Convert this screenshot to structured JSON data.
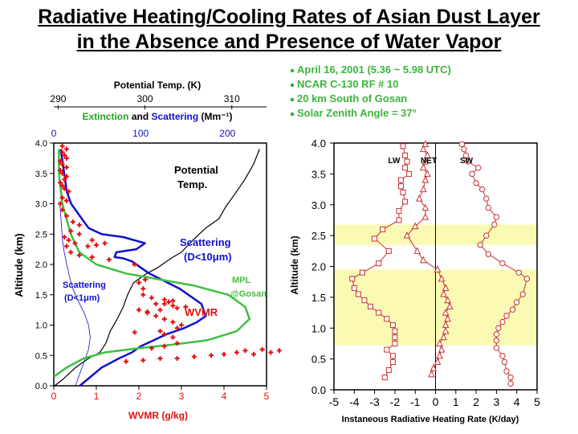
{
  "title": {
    "line1": "Radiative Heating/Cooling Rates of Asian Dust Layer",
    "line2": "in the Absence and Presence of Water Vapor"
  },
  "info": [
    "April 16, 2001 (5.36 ~ 5.98 UTC)",
    "NCAR C-130 RF # 10",
    "20 km South of Gosan",
    "Solar Zenith Angle = 37°"
  ],
  "colors": {
    "title": "#000000",
    "info": "#3cb43c",
    "scattering": "#1010d0",
    "wvmr": "#e01010",
    "mpl": "#40c040",
    "theta": "#000000",
    "flux": "#c83030",
    "band": "#fafab4",
    "axis": "#000000"
  },
  "chart_data": [
    {
      "type": "line",
      "ylabel": "Altitude (km)",
      "ylim": [
        0,
        4
      ],
      "yticks": [
        "0.0",
        "0.5",
        "1.0",
        "1.5",
        "2.0",
        "2.5",
        "3.0",
        "3.5",
        "4.0"
      ],
      "x_bottom": {
        "label": "WVMR (g/kg)",
        "lim": [
          0,
          5
        ],
        "ticks": [
          "0",
          "1",
          "2",
          "3",
          "4",
          "5"
        ]
      },
      "x_top1": {
        "label": "Potential Temp. (K)",
        "lim": [
          289.5,
          314
        ],
        "ticks": [
          "290",
          "300",
          "310"
        ]
      },
      "x_top2": {
        "label_parts": [
          "Extinction",
          "and",
          "Scattering",
          "(Mm⁻¹)"
        ],
        "lim": [
          0,
          245
        ],
        "ticks": [
          "0",
          "100",
          "200"
        ]
      },
      "annotations": {
        "theta_line1": "Potential",
        "theta_line2": "Temp.",
        "scat10_line1": "Scattering",
        "scat10_line2": "(D<10μm)",
        "scat1_line1": "Scattering",
        "scat1_line2": "(D<1μm)",
        "mpl_line1": "MPL",
        "mpl_line2": "@Gosan",
        "wvmr": "WVMR"
      },
      "series": [
        {
          "name": "Potential Temp.",
          "axis": "theta",
          "x": [
            289.6,
            290.5,
            292.0,
            293.5,
            294.8,
            295.5,
            296.0,
            296.8,
            297.5,
            298.0,
            298.7,
            300.2,
            301.5,
            303.0,
            304.2,
            305.5,
            307.0,
            308.5,
            309.3,
            310.3,
            311.5,
            312.5,
            313.2
          ],
          "y": [
            0.0,
            0.1,
            0.3,
            0.45,
            0.55,
            0.7,
            0.9,
            1.1,
            1.3,
            1.5,
            1.7,
            1.85,
            1.95,
            2.1,
            2.2,
            2.4,
            2.6,
            2.75,
            2.95,
            3.15,
            3.4,
            3.65,
            3.9
          ]
        },
        {
          "name": "Scattering (D<10μm)",
          "axis": "scattering",
          "x": [
            30,
            55,
            75,
            90,
            100,
            115,
            130,
            150,
            165,
            175,
            170,
            145,
            110,
            90,
            80,
            70,
            72,
            95,
            105,
            80,
            55,
            40,
            30,
            20,
            15,
            12,
            10,
            8
          ],
          "y": [
            0.0,
            0.3,
            0.45,
            0.55,
            0.65,
            0.75,
            0.85,
            0.95,
            1.05,
            1.15,
            1.35,
            1.6,
            1.85,
            2.05,
            2.1,
            2.12,
            2.2,
            2.25,
            2.35,
            2.45,
            2.5,
            2.6,
            2.8,
            3.0,
            3.2,
            3.5,
            3.7,
            3.9
          ]
        },
        {
          "name": "Scattering (D<1μm)",
          "axis": "scattering",
          "x": [
            25,
            30,
            35,
            40,
            42,
            40,
            35,
            28,
            22,
            18,
            15,
            12,
            10,
            9,
            8,
            7
          ],
          "y": [
            0.0,
            0.2,
            0.4,
            0.6,
            0.8,
            1.0,
            1.2,
            1.4,
            1.6,
            1.8,
            2.0,
            2.2,
            2.4,
            2.6,
            2.8,
            3.0
          ]
        },
        {
          "name": "MPL",
          "axis": "wvmr",
          "x": [
            0.0,
            0.3,
            0.7,
            1.2,
            2.0,
            2.8,
            3.6,
            4.3,
            4.6,
            4.5,
            4.1,
            3.3,
            2.5,
            1.7,
            1.0,
            0.6,
            0.4,
            0.2,
            0.12,
            0.12
          ],
          "y": [
            0.15,
            0.3,
            0.45,
            0.55,
            0.62,
            0.68,
            0.75,
            0.9,
            1.1,
            1.3,
            1.5,
            1.65,
            1.75,
            1.85,
            2.0,
            2.2,
            2.5,
            3.0,
            3.5,
            3.9
          ]
        },
        {
          "name": "WVMR",
          "axis": "wvmr",
          "x": [
            1.7,
            2.1,
            2.5,
            2.9,
            3.3,
            3.7,
            4.0,
            4.3,
            4.5,
            4.7,
            4.9,
            5.1,
            5.3,
            2.3,
            2.6,
            2.9,
            2.8,
            2.6,
            2.5,
            2.9,
            3.0,
            2.8,
            2.6,
            2.4,
            2.2,
            1.9,
            2.2,
            2.0,
            2.5,
            2.9,
            3.1,
            2.8,
            2.6,
            2.4,
            2.7,
            2.8,
            2.6,
            2.3,
            2.1,
            2.1,
            2.0,
            2.15,
            1.9,
            1.3,
            0.9,
            0.6,
            0.4,
            0.3,
            0.35,
            0.25,
            0.5,
            0.8,
            1.0,
            1.2,
            0.9,
            0.6,
            0.4,
            0.6,
            0.45,
            0.3,
            0.2,
            0.15,
            0.3,
            0.2,
            0.35,
            0.25,
            0.2,
            0.15,
            0.25,
            0.3,
            0.2,
            0.15,
            0.3,
            0.2,
            0.15,
            0.3,
            0.25,
            0.2,
            0.3,
            0.2
          ],
          "y": [
            0.4,
            0.42,
            0.45,
            0.45,
            0.48,
            0.5,
            0.52,
            0.55,
            0.58,
            0.52,
            0.6,
            0.55,
            0.58,
            0.62,
            0.65,
            0.7,
            0.8,
            0.85,
            0.9,
            0.95,
            1.0,
            1.05,
            1.1,
            1.15,
            1.2,
            0.88,
            1.22,
            1.25,
            1.25,
            1.28,
            1.3,
            1.32,
            1.35,
            1.35,
            1.38,
            1.4,
            1.42,
            1.45,
            1.5,
            1.6,
            1.7,
            1.75,
            2.0,
            2.08,
            2.12,
            2.15,
            2.2,
            2.3,
            2.4,
            2.45,
            2.35,
            2.3,
            2.32,
            2.35,
            2.4,
            2.5,
            2.55,
            2.65,
            2.7,
            2.8,
            2.9,
            3.0,
            3.05,
            3.1,
            3.2,
            3.25,
            3.3,
            3.35,
            3.4,
            3.45,
            3.5,
            3.55,
            3.6,
            3.65,
            3.7,
            3.75,
            3.8,
            3.85,
            3.9,
            3.95
          ]
        }
      ]
    },
    {
      "type": "line",
      "xlabel": "Instaneous Radiative Heating Rate (K/day)",
      "ylabel": "Altitude (km)",
      "xlim": [
        -5,
        5
      ],
      "ylim": [
        0,
        4
      ],
      "xticks": [
        "-5",
        "-4",
        "-3",
        "-2",
        "-1",
        "0",
        "1",
        "2",
        "3",
        "4",
        "5"
      ],
      "yticks": [
        "0.0",
        "0.5",
        "1.0",
        "1.5",
        "2.0",
        "2.5",
        "3.0",
        "3.5",
        "4.0"
      ],
      "shaded_bands": [
        [
          0.72,
          1.95
        ],
        [
          2.35,
          2.68
        ]
      ],
      "series": [
        {
          "name": "LW",
          "marker": "square",
          "x": [
            -2.5,
            -2.3,
            -2.1,
            -2.1,
            -2.4,
            -2.0,
            -2.0,
            -2.0,
            -2.1,
            -2.4,
            -2.8,
            -3.2,
            -3.5,
            -3.8,
            -4.0,
            -4.1,
            -3.6,
            -2.8,
            -2.3,
            -3.0,
            -2.6,
            -1.8,
            -1.8,
            -1.5,
            -1.6,
            -1.7,
            -1.7,
            -1.3,
            -1.5,
            -1.4,
            -1.5,
            -1.6
          ],
          "y": [
            0.2,
            0.32,
            0.45,
            0.55,
            0.65,
            0.75,
            0.85,
            0.95,
            1.05,
            1.15,
            1.25,
            1.35,
            1.45,
            1.55,
            1.65,
            1.8,
            1.9,
            2.05,
            2.25,
            2.45,
            2.6,
            2.75,
            2.9,
            3.05,
            3.2,
            3.3,
            3.4,
            3.5,
            3.6,
            3.7,
            3.8,
            3.95
          ]
        },
        {
          "name": "NET",
          "marker": "triangle",
          "x": [
            -0.2,
            -0.1,
            0.1,
            0.2,
            0.3,
            0.2,
            0.4,
            0.5,
            0.5,
            0.6,
            0.5,
            0.7,
            0.6,
            0.4,
            0.5,
            0.3,
            0.1,
            -0.6,
            -0.9,
            -1.4,
            -1.0,
            -0.5,
            -0.5,
            -0.8,
            -0.6,
            -0.5,
            -0.4,
            -0.6,
            -0.5,
            -0.4,
            -0.6,
            -0.5
          ],
          "y": [
            0.25,
            0.35,
            0.45,
            0.55,
            0.65,
            0.75,
            0.85,
            0.95,
            1.05,
            1.15,
            1.25,
            1.35,
            1.45,
            1.55,
            1.65,
            1.8,
            1.95,
            2.1,
            2.25,
            2.5,
            2.65,
            2.8,
            2.95,
            3.1,
            3.25,
            3.4,
            3.5,
            3.6,
            3.7,
            3.8,
            3.9,
            3.98
          ]
        },
        {
          "name": "SW",
          "marker": "circle",
          "x": [
            3.7,
            3.7,
            3.5,
            3.4,
            3.3,
            3.0,
            3.0,
            3.0,
            3.1,
            3.3,
            3.5,
            3.8,
            4.0,
            4.3,
            4.5,
            4.1,
            3.3,
            2.6,
            2.2,
            2.5,
            2.9,
            3.0,
            2.6,
            2.5,
            2.3,
            2.0,
            1.8,
            2.1,
            1.6,
            1.5,
            1.4,
            1.3
          ],
          "y": [
            0.1,
            0.2,
            0.3,
            0.45,
            0.55,
            0.68,
            0.8,
            0.9,
            1.0,
            1.1,
            1.2,
            1.3,
            1.42,
            1.55,
            1.8,
            1.9,
            2.05,
            2.2,
            2.35,
            2.5,
            2.68,
            2.8,
            2.95,
            3.1,
            3.25,
            3.35,
            3.5,
            3.6,
            3.7,
            3.8,
            3.9,
            3.98
          ]
        }
      ],
      "annotations": {
        "lw": "LW",
        "net": "NET",
        "sw": "SW"
      }
    }
  ]
}
